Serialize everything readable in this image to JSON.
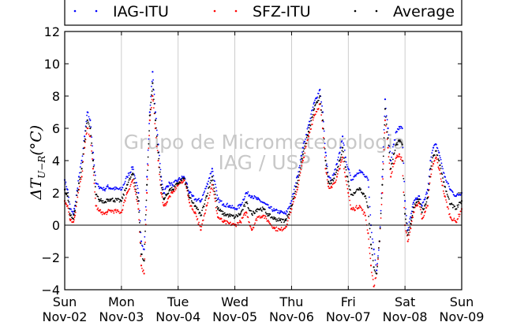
{
  "chart_data": {
    "type": "scatter",
    "ylabel": "ΔT_{U−R}(°C)",
    "ylabel_main": "ΔT",
    "ylabel_sub": "U−R",
    "ylabel_unit": "(°C)",
    "watermark_line1": "Grupo de Micrometeorologia",
    "watermark_line2": "IAG / USP",
    "xlim": [
      0,
      7
    ],
    "ylim": [
      -4,
      12
    ],
    "yticks": [
      -4,
      -2,
      0,
      2,
      4,
      6,
      8,
      10,
      12
    ],
    "ytick_labels": [
      "−4",
      "−2",
      "0",
      "2",
      "4",
      "6",
      "8",
      "10",
      "12"
    ],
    "xticks": [
      {
        "day": "Sun",
        "date": "Nov-02"
      },
      {
        "day": "Mon",
        "date": "Nov-03"
      },
      {
        "day": "Tue",
        "date": "Nov-04"
      },
      {
        "day": "Wed",
        "date": "Nov-05"
      },
      {
        "day": "Thu",
        "date": "Nov-06"
      },
      {
        "day": "Fri",
        "date": "Nov-07"
      },
      {
        "day": "Sat",
        "date": "Nov-08"
      },
      {
        "day": "Sun",
        "date": "Nov-09"
      }
    ],
    "grid": "vertical",
    "reference_line_y": 0,
    "legend": {
      "placement": "top",
      "columns": 3
    },
    "series": [
      {
        "name": "IAG-ITU",
        "color": "#0000ff",
        "x": [
          0.0,
          0.05,
          0.1,
          0.15,
          0.18,
          0.25,
          0.3,
          0.35,
          0.4,
          0.45,
          0.5,
          0.55,
          0.6,
          0.65,
          0.7,
          0.75,
          0.8,
          1.0,
          1.1,
          1.2,
          1.3,
          1.35,
          1.4,
          1.45,
          1.5,
          1.55,
          1.6,
          1.65,
          1.7,
          1.75,
          1.8,
          1.85,
          1.9,
          2.0,
          2.1,
          2.15,
          2.2,
          2.25,
          2.3,
          2.4,
          2.5,
          2.6,
          2.7,
          2.8,
          2.9,
          3.0,
          3.1,
          3.2,
          3.3,
          3.4,
          3.5,
          3.6,
          3.7,
          3.8,
          3.9,
          4.0,
          4.1,
          4.2,
          4.3,
          4.4,
          4.5,
          4.55,
          4.6,
          4.65,
          4.7,
          4.75,
          4.8,
          4.85,
          4.9,
          4.95,
          5.0,
          5.05,
          5.1,
          5.2,
          5.3,
          5.35,
          5.4,
          5.45,
          5.5,
          5.55,
          5.6,
          5.65,
          5.7,
          5.75,
          5.8,
          5.85,
          5.9,
          5.95,
          6.0,
          6.05,
          6.1,
          6.15,
          6.2,
          6.25,
          6.3,
          6.35,
          6.4,
          6.45,
          6.5,
          6.55,
          6.6,
          6.7,
          6.8,
          6.9,
          7.0
        ],
        "y": [
          2.8,
          2.2,
          1.0,
          0.7,
          1.2,
          3.0,
          4.0,
          5.5,
          7.0,
          6.5,
          4.5,
          2.6,
          2.4,
          2.3,
          2.2,
          2.4,
          2.3,
          2.2,
          3.0,
          3.6,
          2.0,
          -1.0,
          -1.5,
          3.0,
          7.0,
          9.5,
          7.0,
          5.0,
          3.0,
          2.0,
          2.4,
          2.6,
          2.5,
          2.8,
          3.0,
          2.6,
          2.0,
          1.8,
          1.6,
          1.5,
          2.4,
          3.5,
          1.6,
          1.3,
          1.2,
          1.0,
          1.2,
          2.0,
          1.8,
          1.6,
          1.4,
          1.1,
          0.9,
          0.8,
          0.7,
          1.5,
          3.0,
          4.8,
          6.2,
          7.6,
          8.4,
          7.0,
          4.5,
          3.0,
          2.8,
          3.2,
          3.8,
          4.5,
          5.5,
          4.2,
          3.5,
          2.8,
          3.0,
          3.4,
          3.0,
          2.8,
          0.0,
          -1.5,
          -2.8,
          -1.0,
          3.0,
          7.8,
          6.0,
          4.0,
          5.0,
          5.8,
          6.1,
          6.0,
          1.5,
          -0.3,
          0.5,
          1.4,
          1.6,
          1.8,
          1.2,
          1.6,
          2.2,
          4.0,
          4.8,
          5.0,
          4.5,
          3.0,
          2.2,
          1.8,
          2.0
        ]
      },
      {
        "name": "SFZ-ITU",
        "color": "#ff0000",
        "x": [
          0.0,
          0.05,
          0.1,
          0.15,
          0.18,
          0.25,
          0.3,
          0.35,
          0.4,
          0.45,
          0.5,
          0.55,
          0.6,
          0.65,
          0.7,
          0.75,
          0.8,
          1.0,
          1.1,
          1.2,
          1.3,
          1.35,
          1.4,
          1.45,
          1.5,
          1.55,
          1.6,
          1.65,
          1.7,
          1.75,
          1.8,
          1.85,
          1.9,
          2.0,
          2.1,
          2.15,
          2.2,
          2.25,
          2.3,
          2.4,
          2.5,
          2.6,
          2.7,
          2.8,
          2.9,
          3.0,
          3.1,
          3.2,
          3.3,
          3.4,
          3.5,
          3.6,
          3.7,
          3.8,
          3.9,
          4.0,
          4.1,
          4.2,
          4.3,
          4.4,
          4.5,
          4.55,
          4.6,
          4.65,
          4.7,
          4.75,
          4.8,
          4.85,
          4.9,
          4.95,
          5.0,
          5.05,
          5.1,
          5.2,
          5.3,
          5.35,
          5.4,
          5.45,
          5.5,
          5.55,
          5.6,
          5.65,
          5.7,
          5.75,
          5.8,
          5.85,
          5.9,
          5.95,
          6.0,
          6.05,
          6.1,
          6.15,
          6.2,
          6.25,
          6.3,
          6.35,
          6.4,
          6.45,
          6.5,
          6.55,
          6.6,
          6.7,
          6.8,
          6.9,
          7.0
        ],
        "y": [
          1.5,
          1.2,
          0.3,
          0.2,
          0.6,
          2.2,
          3.0,
          4.8,
          6.0,
          5.5,
          3.5,
          1.2,
          0.9,
          0.8,
          0.7,
          0.8,
          0.9,
          0.8,
          2.0,
          2.8,
          1.0,
          -2.5,
          -3.0,
          2.0,
          6.5,
          8.0,
          6.0,
          4.0,
          2.0,
          1.2,
          1.4,
          1.8,
          2.0,
          2.5,
          2.8,
          2.3,
          1.4,
          1.0,
          0.8,
          -0.3,
          1.2,
          2.5,
          0.5,
          0.2,
          0.1,
          0.0,
          0.2,
          0.8,
          -0.3,
          0.5,
          0.6,
          0.2,
          -0.2,
          -0.3,
          -0.1,
          1.0,
          2.2,
          4.0,
          5.5,
          6.8,
          7.5,
          6.0,
          3.5,
          2.4,
          2.4,
          2.6,
          3.0,
          3.5,
          4.2,
          3.0,
          2.0,
          1.0,
          1.0,
          1.2,
          0.6,
          -0.5,
          -2.5,
          -3.8,
          -3.0,
          -1.0,
          2.0,
          6.5,
          4.8,
          3.0,
          3.8,
          4.2,
          4.4,
          4.0,
          0.0,
          -1.0,
          -0.2,
          0.8,
          1.2,
          1.4,
          0.4,
          0.8,
          1.2,
          3.0,
          3.8,
          4.2,
          3.5,
          1.8,
          0.5,
          0.2,
          1.0
        ]
      },
      {
        "name": "Average",
        "color": "#000000",
        "x": [
          0.0,
          0.05,
          0.1,
          0.15,
          0.18,
          0.25,
          0.3,
          0.35,
          0.4,
          0.45,
          0.5,
          0.55,
          0.6,
          0.65,
          0.7,
          0.75,
          0.8,
          1.0,
          1.1,
          1.2,
          1.3,
          1.35,
          1.4,
          1.45,
          1.5,
          1.55,
          1.6,
          1.65,
          1.7,
          1.75,
          1.8,
          1.85,
          1.9,
          2.0,
          2.1,
          2.15,
          2.2,
          2.25,
          2.3,
          2.4,
          2.5,
          2.6,
          2.7,
          2.8,
          2.9,
          3.0,
          3.1,
          3.2,
          3.3,
          3.4,
          3.5,
          3.6,
          3.7,
          3.8,
          3.9,
          4.0,
          4.1,
          4.2,
          4.3,
          4.4,
          4.5,
          4.55,
          4.6,
          4.65,
          4.7,
          4.75,
          4.8,
          4.85,
          4.9,
          4.95,
          5.0,
          5.05,
          5.1,
          5.2,
          5.3,
          5.35,
          5.4,
          5.45,
          5.5,
          5.55,
          5.6,
          5.65,
          5.7,
          5.75,
          5.8,
          5.85,
          5.9,
          5.95,
          6.0,
          6.05,
          6.1,
          6.15,
          6.2,
          6.25,
          6.3,
          6.35,
          6.4,
          6.45,
          6.5,
          6.55,
          6.6,
          6.7,
          6.8,
          6.9,
          7.0
        ],
        "y": [
          2.2,
          1.8,
          0.6,
          0.4,
          0.9,
          2.6,
          3.5,
          5.2,
          6.5,
          6.0,
          4.0,
          1.9,
          1.6,
          1.5,
          1.4,
          1.6,
          1.6,
          1.5,
          2.5,
          3.2,
          1.5,
          -1.8,
          -2.2,
          2.5,
          6.8,
          8.8,
          6.5,
          4.5,
          2.5,
          1.6,
          1.9,
          2.2,
          2.2,
          2.6,
          2.9,
          2.4,
          1.7,
          1.4,
          1.2,
          0.6,
          1.8,
          3.0,
          1.0,
          0.7,
          0.6,
          0.5,
          0.7,
          1.4,
          0.7,
          1.0,
          1.0,
          0.6,
          0.4,
          0.3,
          0.3,
          1.2,
          2.6,
          4.4,
          5.8,
          7.2,
          8.0,
          6.5,
          4.0,
          2.7,
          2.6,
          2.9,
          3.4,
          4.0,
          4.8,
          3.6,
          2.7,
          1.9,
          2.0,
          2.3,
          1.8,
          1.1,
          -1.2,
          -2.6,
          -3.0,
          -1.0,
          2.5,
          7.2,
          5.4,
          3.5,
          4.4,
          5.0,
          5.2,
          5.0,
          0.7,
          -0.6,
          0.1,
          1.1,
          1.4,
          1.6,
          0.8,
          1.2,
          1.7,
          3.5,
          4.3,
          4.6,
          4.0,
          2.4,
          1.3,
          1.0,
          1.5
        ]
      }
    ]
  }
}
